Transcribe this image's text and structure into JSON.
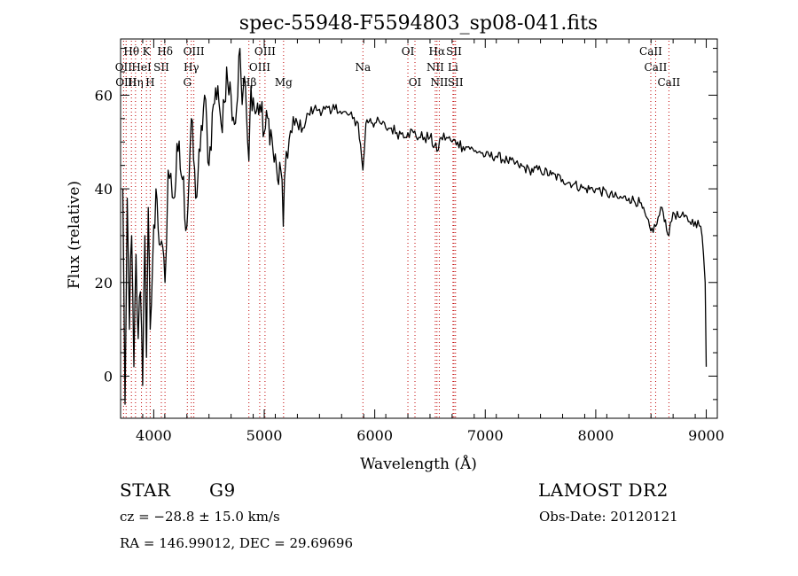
{
  "chart_data": {
    "type": "line",
    "title": "spec-55948-F5594803_sp08-041.fits",
    "xlabel": "Wavelength (Å)",
    "ylabel": "Flux (relative)",
    "xlim": [
      3700,
      9100
    ],
    "ylim": [
      -9,
      72
    ],
    "x_ticks": [
      4000,
      5000,
      6000,
      7000,
      8000,
      9000
    ],
    "y_ticks": [
      0,
      20,
      40,
      60
    ],
    "grid": false,
    "line_color": "#000000",
    "marker_line_color": "#c00000",
    "series": [
      {
        "x": [
          3720,
          3740,
          3760,
          3780,
          3800,
          3820,
          3840,
          3860,
          3880,
          3900,
          3920,
          3934,
          3950,
          3968,
          3990,
          4020,
          4060,
          4102,
          4130,
          4180,
          4220,
          4260,
          4300,
          4340,
          4380,
          4420,
          4460,
          4500,
          4540,
          4580,
          4620,
          4660,
          4700,
          4740,
          4780,
          4800,
          4820,
          4850,
          4861,
          4880,
          4920,
          4960,
          5000,
          5040,
          5080,
          5120,
          5150,
          5172,
          5183,
          5200,
          5250,
          5300,
          5350,
          5400,
          5450,
          5500,
          5550,
          5600,
          5650,
          5700,
          5750,
          5800,
          5850,
          5893,
          5920,
          5960,
          6000,
          6050,
          6100,
          6150,
          6200,
          6250,
          6300,
          6350,
          6400,
          6450,
          6500,
          6563,
          6600,
          6650,
          6700,
          6750,
          6800,
          6850,
          6900,
          6950,
          7000,
          7100,
          7200,
          7300,
          7400,
          7500,
          7600,
          7700,
          7800,
          7900,
          8000,
          8100,
          8200,
          8300,
          8400,
          8498,
          8542,
          8600,
          8662,
          8700,
          8750,
          8800,
          8850,
          8900,
          8950,
          8975,
          8990,
          9000
        ],
        "y": [
          40,
          -6,
          38,
          10,
          30,
          2,
          26,
          8,
          18,
          -2,
          30,
          4,
          36,
          10,
          24,
          40,
          28,
          20,
          44,
          38,
          48,
          42,
          32,
          55,
          38,
          48,
          60,
          45,
          58,
          62,
          52,
          66,
          60,
          54,
          70,
          58,
          64,
          50,
          46,
          62,
          56,
          58,
          52,
          55,
          48,
          42,
          44,
          32,
          42,
          48,
          52,
          54,
          53,
          56,
          57,
          57,
          57,
          56,
          58,
          56,
          56,
          55,
          54,
          44,
          54,
          55,
          54,
          54,
          53,
          53,
          52,
          52,
          52,
          52,
          51,
          51,
          51,
          48,
          51,
          51,
          50,
          50,
          49,
          49,
          48,
          48,
          47,
          47,
          46,
          45,
          44,
          44,
          43,
          42,
          41,
          40,
          40,
          39,
          38,
          38,
          37,
          31,
          32,
          36,
          30,
          35,
          34,
          34,
          33,
          33,
          32,
          26,
          20,
          2
        ]
      }
    ],
    "line_markers": [
      {
        "label": "Hθ",
        "x": 3798,
        "row": 1
      },
      {
        "label": "K",
        "x": 3934,
        "row": 1
      },
      {
        "label": "Hδ",
        "x": 4102,
        "row": 1
      },
      {
        "label": "OIII",
        "x": 4363,
        "row": 1
      },
      {
        "label": "OIII",
        "x": 5007,
        "row": 1
      },
      {
        "label": "OI",
        "x": 6300,
        "row": 1
      },
      {
        "label": "Hα",
        "x": 6563,
        "row": 1
      },
      {
        "label": "SII",
        "x": 6717,
        "row": 1
      },
      {
        "label": "CaII",
        "x": 8498,
        "row": 1
      },
      {
        "label": "OII",
        "x": 3727,
        "row": 2
      },
      {
        "label": "HeI",
        "x": 3889,
        "row": 2
      },
      {
        "label": "SII",
        "x": 4069,
        "row": 2
      },
      {
        "label": "Hγ",
        "x": 4340,
        "row": 2
      },
      {
        "label": "OIII",
        "x": 4959,
        "row": 2
      },
      {
        "label": "Na",
        "x": 5893,
        "row": 2
      },
      {
        "label": "NII",
        "x": 6548,
        "row": 2
      },
      {
        "label": "Li",
        "x": 6708,
        "row": 2
      },
      {
        "label": "CaII",
        "x": 8542,
        "row": 2
      },
      {
        "label": "OIII",
        "x": 3750,
        "row": 3
      },
      {
        "label": "Hη",
        "x": 3835,
        "row": 3
      },
      {
        "label": "H",
        "x": 3968,
        "row": 3
      },
      {
        "label": "G",
        "x": 4304,
        "row": 3
      },
      {
        "label": "Hβ",
        "x": 4861,
        "row": 3
      },
      {
        "label": "Mg",
        "x": 5175,
        "row": 3
      },
      {
        "label": "OI",
        "x": 6364,
        "row": 3
      },
      {
        "label": "NII",
        "x": 6584,
        "row": 3
      },
      {
        "label": "SII",
        "x": 6731,
        "row": 3
      },
      {
        "label": "CaII",
        "x": 8662,
        "row": 3
      }
    ]
  },
  "info": {
    "object_type": "STAR",
    "subclass": "G9",
    "survey": "LAMOST DR2",
    "redshift": "cz = −28.8 ± 15.0 km/s",
    "obs_date": "Obs-Date: 20120121",
    "coordinates": "RA = 146.99012, DEC =  29.69696"
  }
}
